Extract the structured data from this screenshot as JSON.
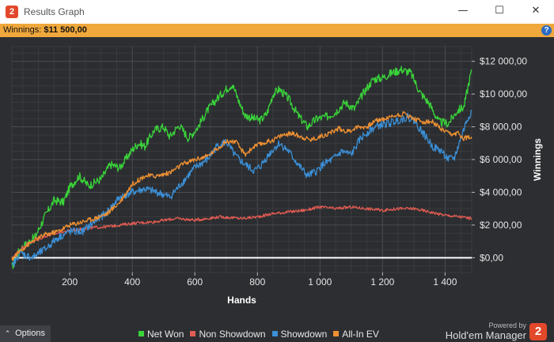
{
  "window": {
    "title": "Results Graph",
    "minimize_glyph": "—",
    "maximize_glyph": "☐",
    "close_glyph": "✕",
    "app_icon_text": "2"
  },
  "status": {
    "winnings_label": "Winnings:",
    "winnings_value": "$11 500,00",
    "help_glyph": "?"
  },
  "chart_data": {
    "type": "line",
    "xlabel": "Hands",
    "ylabel": "Winnings",
    "xlim": [
      15,
      1485
    ],
    "ylim": [
      -900,
      12900
    ],
    "x_ticks": [
      200,
      400,
      600,
      800,
      1000,
      1200,
      1400
    ],
    "x_tick_labels": [
      "200",
      "400",
      "600",
      "800",
      "1 000",
      "1 200",
      "1 400"
    ],
    "y_ticks": [
      0,
      2000,
      4000,
      6000,
      8000,
      10000,
      12000
    ],
    "y_tick_labels": [
      "$0,00",
      "$2 000,00",
      "$4 000,00",
      "$6 000,00",
      "$8 000,00",
      "$10 000,00",
      "$12 000,00"
    ],
    "grid": true,
    "legend_position": "bottom",
    "series": [
      {
        "name": "Net Won",
        "color": "#3ad33a",
        "points": [
          [
            15,
            -600
          ],
          [
            40,
            500
          ],
          [
            90,
            1300
          ],
          [
            120,
            2500
          ],
          [
            150,
            3500
          ],
          [
            180,
            3400
          ],
          [
            200,
            4300
          ],
          [
            230,
            5000
          ],
          [
            260,
            4400
          ],
          [
            300,
            4800
          ],
          [
            330,
            5700
          ],
          [
            360,
            5500
          ],
          [
            400,
            6600
          ],
          [
            420,
            7000
          ],
          [
            440,
            6800
          ],
          [
            470,
            7800
          ],
          [
            500,
            8000
          ],
          [
            520,
            7400
          ],
          [
            550,
            8100
          ],
          [
            580,
            7300
          ],
          [
            610,
            8000
          ],
          [
            640,
            9000
          ],
          [
            670,
            9700
          ],
          [
            700,
            10300
          ],
          [
            720,
            10600
          ],
          [
            740,
            9600
          ],
          [
            760,
            8700
          ],
          [
            790,
            8500
          ],
          [
            810,
            8400
          ],
          [
            830,
            8800
          ],
          [
            850,
            10000
          ],
          [
            870,
            10300
          ],
          [
            900,
            9700
          ],
          [
            930,
            8700
          ],
          [
            960,
            8000
          ],
          [
            990,
            8500
          ],
          [
            1020,
            8600
          ],
          [
            1050,
            8900
          ],
          [
            1080,
            9500
          ],
          [
            1110,
            9100
          ],
          [
            1140,
            10100
          ],
          [
            1170,
            10900
          ],
          [
            1200,
            11000
          ],
          [
            1230,
            11300
          ],
          [
            1260,
            11500
          ],
          [
            1290,
            11300
          ],
          [
            1320,
            10100
          ],
          [
            1350,
            9400
          ],
          [
            1380,
            8300
          ],
          [
            1410,
            8200
          ],
          [
            1440,
            9000
          ],
          [
            1460,
            9200
          ],
          [
            1475,
            10600
          ],
          [
            1485,
            11500
          ]
        ]
      },
      {
        "name": "Non Showdown",
        "color": "#e25b52",
        "points": [
          [
            15,
            0
          ],
          [
            60,
            800
          ],
          [
            120,
            1300
          ],
          [
            180,
            1600
          ],
          [
            250,
            1800
          ],
          [
            320,
            1900
          ],
          [
            400,
            2100
          ],
          [
            470,
            2200
          ],
          [
            540,
            2400
          ],
          [
            600,
            2300
          ],
          [
            680,
            2500
          ],
          [
            750,
            2400
          ],
          [
            800,
            2500
          ],
          [
            850,
            2700
          ],
          [
            900,
            2800
          ],
          [
            950,
            2900
          ],
          [
            1000,
            3100
          ],
          [
            1050,
            3000
          ],
          [
            1100,
            3100
          ],
          [
            1150,
            3000
          ],
          [
            1200,
            2900
          ],
          [
            1250,
            3000
          ],
          [
            1300,
            3000
          ],
          [
            1350,
            2800
          ],
          [
            1400,
            2600
          ],
          [
            1450,
            2500
          ],
          [
            1485,
            2400
          ]
        ]
      },
      {
        "name": "Showdown",
        "color": "#3b8fd6",
        "points": [
          [
            15,
            -600
          ],
          [
            40,
            300
          ],
          [
            80,
            0
          ],
          [
            120,
            500
          ],
          [
            160,
            1200
          ],
          [
            200,
            1600
          ],
          [
            240,
            1600
          ],
          [
            280,
            2200
          ],
          [
            320,
            2800
          ],
          [
            360,
            3700
          ],
          [
            400,
            4000
          ],
          [
            440,
            4200
          ],
          [
            480,
            4000
          ],
          [
            520,
            3700
          ],
          [
            560,
            4600
          ],
          [
            600,
            5500
          ],
          [
            640,
            6000
          ],
          [
            670,
            6800
          ],
          [
            700,
            7100
          ],
          [
            730,
            6200
          ],
          [
            760,
            5700
          ],
          [
            790,
            5300
          ],
          [
            810,
            5600
          ],
          [
            840,
            6400
          ],
          [
            870,
            7000
          ],
          [
            900,
            6500
          ],
          [
            930,
            5700
          ],
          [
            960,
            5000
          ],
          [
            990,
            5300
          ],
          [
            1010,
            5700
          ],
          [
            1040,
            6000
          ],
          [
            1070,
            6500
          ],
          [
            1100,
            6300
          ],
          [
            1130,
            7300
          ],
          [
            1160,
            7800
          ],
          [
            1190,
            8100
          ],
          [
            1220,
            8200
          ],
          [
            1250,
            8400
          ],
          [
            1280,
            8600
          ],
          [
            1300,
            8400
          ],
          [
            1330,
            7600
          ],
          [
            1360,
            6800
          ],
          [
            1390,
            6500
          ],
          [
            1410,
            6000
          ],
          [
            1430,
            6100
          ],
          [
            1450,
            7300
          ],
          [
            1470,
            8400
          ],
          [
            1485,
            9000
          ]
        ]
      },
      {
        "name": "All-In EV",
        "color": "#ef9033",
        "points": [
          [
            15,
            -100
          ],
          [
            40,
            400
          ],
          [
            80,
            1000
          ],
          [
            120,
            1400
          ],
          [
            160,
            1600
          ],
          [
            200,
            2000
          ],
          [
            240,
            2200
          ],
          [
            280,
            2400
          ],
          [
            320,
            2700
          ],
          [
            360,
            3400
          ],
          [
            400,
            4500
          ],
          [
            440,
            5000
          ],
          [
            480,
            5000
          ],
          [
            520,
            5200
          ],
          [
            560,
            5700
          ],
          [
            600,
            6000
          ],
          [
            640,
            6200
          ],
          [
            680,
            6800
          ],
          [
            700,
            7100
          ],
          [
            730,
            7100
          ],
          [
            760,
            6300
          ],
          [
            790,
            6800
          ],
          [
            820,
            7000
          ],
          [
            850,
            7200
          ],
          [
            880,
            7500
          ],
          [
            910,
            7600
          ],
          [
            940,
            7400
          ],
          [
            970,
            7200
          ],
          [
            1000,
            7400
          ],
          [
            1030,
            7600
          ],
          [
            1060,
            7900
          ],
          [
            1090,
            7700
          ],
          [
            1120,
            8000
          ],
          [
            1150,
            8000
          ],
          [
            1180,
            8400
          ],
          [
            1210,
            8500
          ],
          [
            1240,
            8700
          ],
          [
            1270,
            8800
          ],
          [
            1300,
            8500
          ],
          [
            1330,
            8300
          ],
          [
            1360,
            8300
          ],
          [
            1390,
            7800
          ],
          [
            1420,
            7500
          ],
          [
            1440,
            7600
          ],
          [
            1460,
            7300
          ],
          [
            1485,
            7400
          ]
        ]
      }
    ]
  },
  "bottom": {
    "options_label": "Options",
    "options_chevron": "⌃",
    "powered_by": "Powered by",
    "brand": "Hold'em Manager",
    "brand_logo_text": "2"
  }
}
